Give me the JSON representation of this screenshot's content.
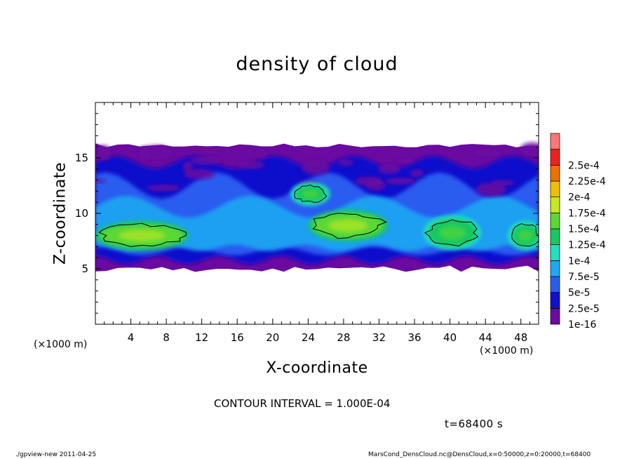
{
  "chart_data": {
    "type": "heatmap",
    "title": "density of cloud",
    "xlabel": "X-coordinate",
    "ylabel": "Z-coordinate",
    "x_unit_label": "(×1000 m)",
    "y_unit_label": "(×1000 m)",
    "xlim": [
      0,
      50
    ],
    "ylim": [
      0,
      20
    ],
    "x_ticks": [
      4,
      8,
      12,
      16,
      20,
      24,
      28,
      32,
      36,
      40,
      44,
      48
    ],
    "y_ticks": [
      5,
      10,
      15
    ],
    "colorbar": {
      "levels": [
        "1e-16",
        "2.5e-5",
        "5e-5",
        "7.5e-5",
        "1e-4",
        "1.25e-4",
        "1.5e-4",
        "1.75e-4",
        "2e-4",
        "2.25e-4",
        "2.5e-4"
      ],
      "colors": [
        "#6a0aa0",
        "#1010cc",
        "#2a5cf0",
        "#1fa8f2",
        "#22e0c0",
        "#18c860",
        "#5cd834",
        "#c8e820",
        "#f0c000",
        "#f07000",
        "#f02020",
        "#ff7878"
      ]
    },
    "cloud_layer": {
      "z_bottom": 5,
      "z_top": 16.2
    },
    "regions": [
      {
        "level_index": 6,
        "x_range": [
          0.5,
          10
        ],
        "z_range": [
          7.0,
          9.0
        ]
      },
      {
        "level_index": 6,
        "x_range": [
          24.5,
          32.5
        ],
        "z_range": [
          7.8,
          10.0
        ]
      },
      {
        "level_index": 5,
        "x_range": [
          37.5,
          43
        ],
        "z_range": [
          7.0,
          9.5
        ]
      },
      {
        "level_index": 5,
        "x_range": [
          47,
          50
        ],
        "z_range": [
          7.0,
          9.0
        ]
      },
      {
        "level_index": 5,
        "x_range": [
          22.5,
          26
        ],
        "z_range": [
          11.0,
          12.5
        ]
      }
    ],
    "contour_interval": "CONTOUR INTERVAL = 1.000E-04",
    "time_label": "t=68400 s"
  },
  "footer": {
    "left": "./gpview-new   2011-04-25",
    "right": "MarsCond_DensCloud.nc@DensCloud,x=0:50000,z=0:20000,t=68400"
  }
}
